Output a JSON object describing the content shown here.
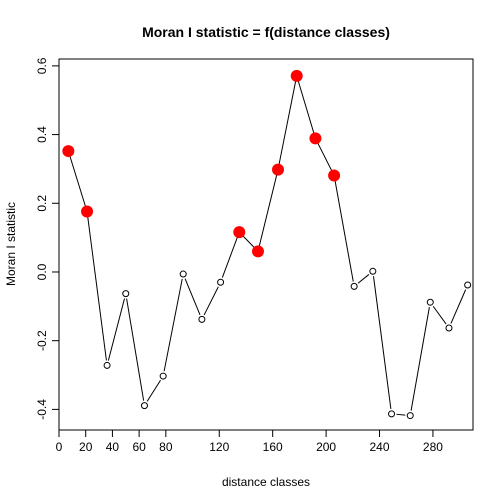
{
  "chart_data": {
    "type": "line",
    "title": "Moran I statistic = f(distance classes)",
    "xlabel": "distance classes",
    "ylabel": "Moran I statistic",
    "xlim": [
      0,
      310
    ],
    "ylim": [
      -0.46,
      0.62
    ],
    "x_ticks": [
      0,
      20,
      40,
      60,
      80,
      120,
      160,
      200,
      240,
      280
    ],
    "y_ticks": [
      -0.4,
      -0.2,
      0.0,
      0.2,
      0.4,
      0.6
    ],
    "y_tick_labels": [
      "-0.4",
      "-0.2",
      "0.0",
      "0.2",
      "0.4",
      "0.6"
    ],
    "grid": false,
    "line_color": "#000000",
    "significant_color": "#ff0000",
    "points": [
      {
        "x": 7,
        "y": 0.352,
        "significant": true
      },
      {
        "x": 21,
        "y": 0.176,
        "significant": true
      },
      {
        "x": 36,
        "y": -0.272,
        "significant": false
      },
      {
        "x": 50,
        "y": -0.063,
        "significant": false
      },
      {
        "x": 64,
        "y": -0.389,
        "significant": false
      },
      {
        "x": 78,
        "y": -0.303,
        "significant": false
      },
      {
        "x": 93,
        "y": -0.006,
        "significant": false
      },
      {
        "x": 107,
        "y": -0.138,
        "significant": false
      },
      {
        "x": 121,
        "y": -0.03,
        "significant": false
      },
      {
        "x": 135,
        "y": 0.116,
        "significant": true
      },
      {
        "x": 149,
        "y": 0.06,
        "significant": true
      },
      {
        "x": 164,
        "y": 0.298,
        "significant": true
      },
      {
        "x": 178,
        "y": 0.571,
        "significant": true
      },
      {
        "x": 192,
        "y": 0.389,
        "significant": true
      },
      {
        "x": 206,
        "y": 0.281,
        "significant": true
      },
      {
        "x": 221,
        "y": -0.042,
        "significant": false
      },
      {
        "x": 235,
        "y": 0.002,
        "significant": false
      },
      {
        "x": 249,
        "y": -0.413,
        "significant": false
      },
      {
        "x": 263,
        "y": -0.418,
        "significant": false
      },
      {
        "x": 278,
        "y": -0.088,
        "significant": false
      },
      {
        "x": 292,
        "y": -0.163,
        "significant": false
      },
      {
        "x": 306,
        "y": -0.038,
        "significant": false
      }
    ]
  }
}
